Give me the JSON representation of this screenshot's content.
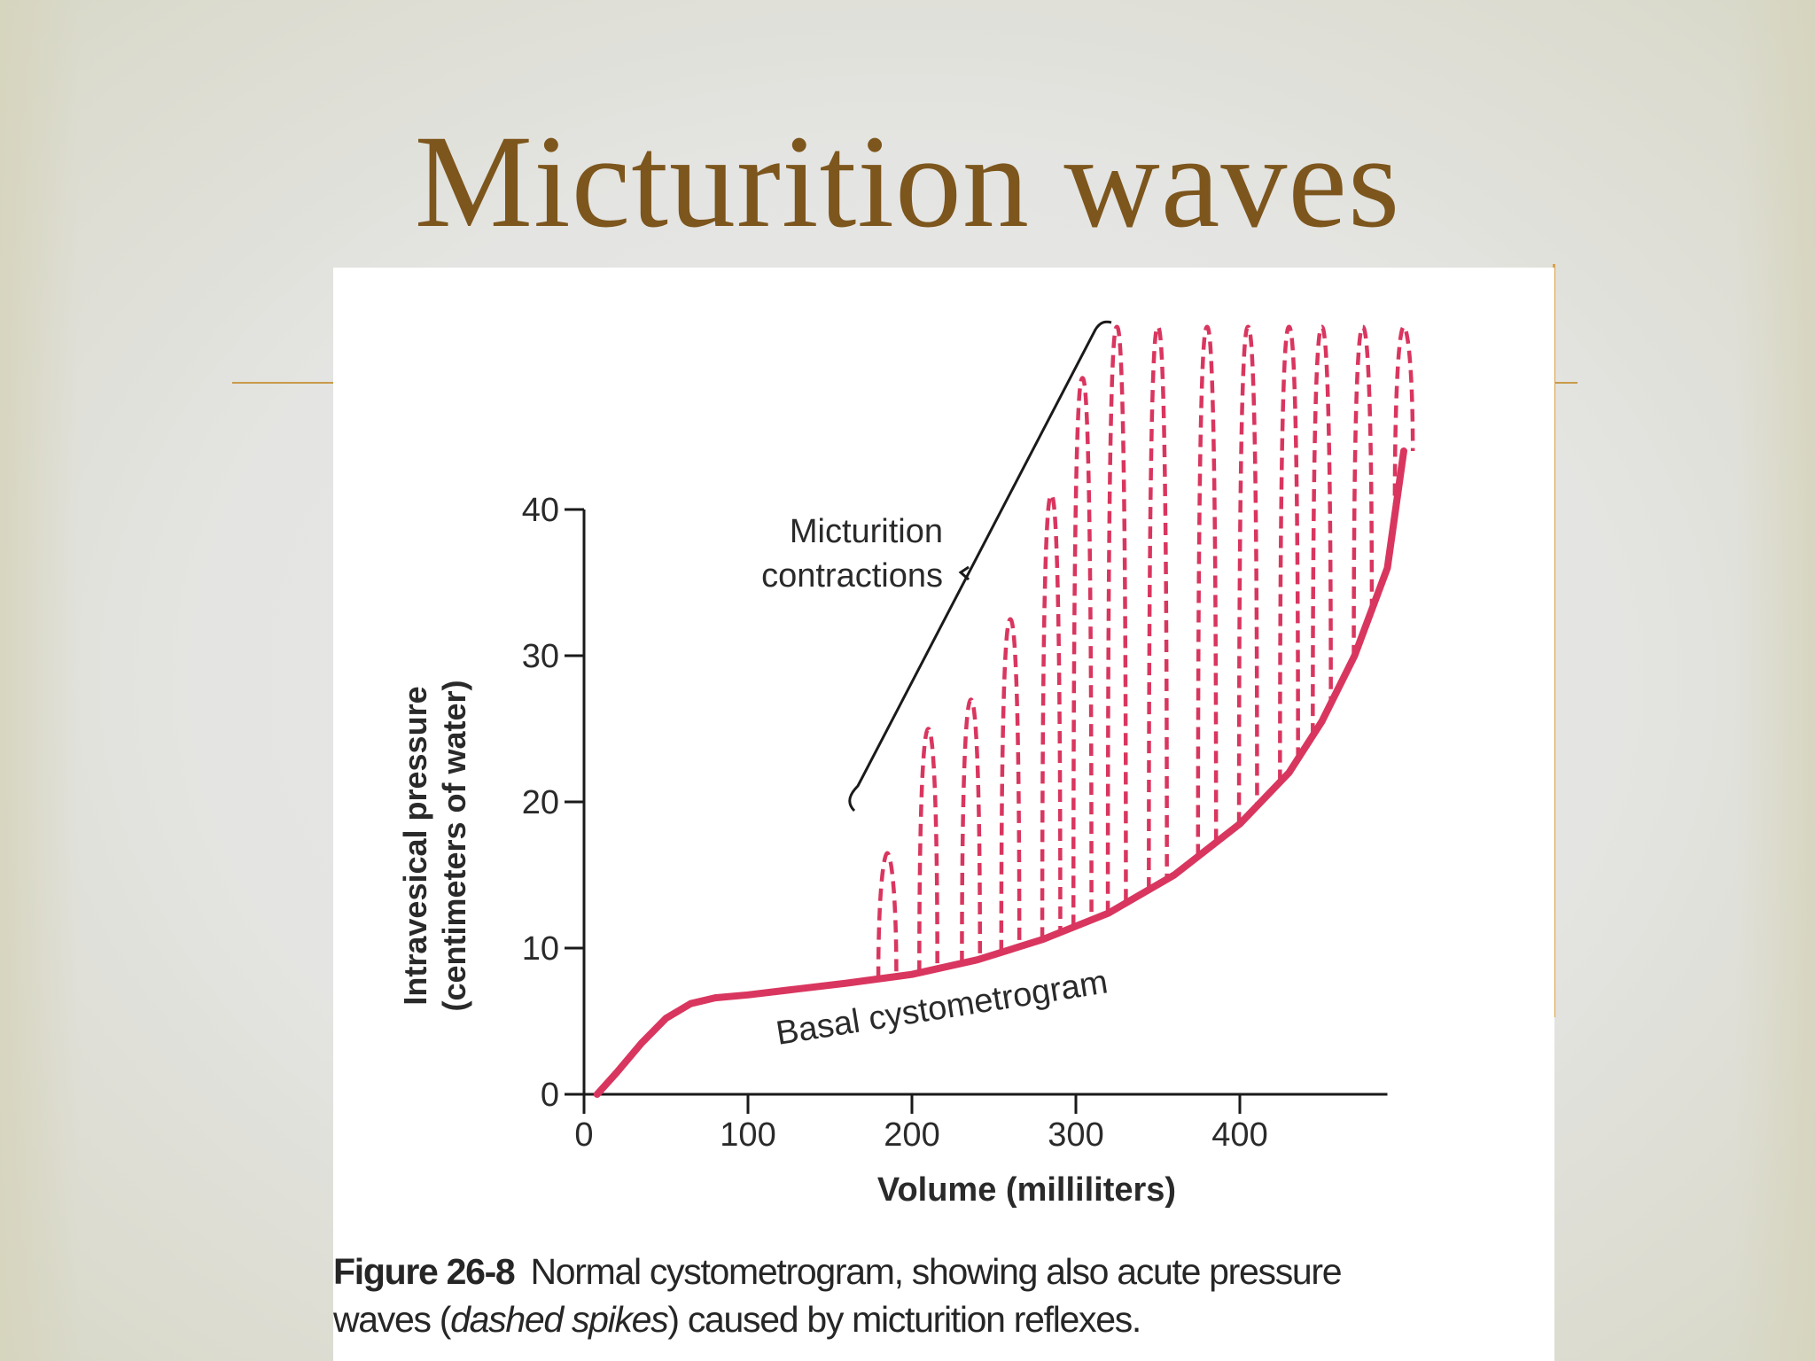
{
  "slide": {
    "title": "Micturition waves"
  },
  "figure": {
    "caption_number": "Figure 26-8",
    "caption_line1": "Normal cystometrogram, showing also acute pressure",
    "caption_line2_pre": "waves (",
    "caption_line2_italic": "dashed spikes",
    "caption_line2_post": ") caused by micturition reflexes."
  },
  "colors": {
    "title": "#7d561d",
    "accent_rule": "#c99a4a",
    "curve": "#d9365f",
    "axis": "#1a1a1a"
  },
  "chart_data": {
    "type": "line",
    "title": "",
    "xlabel": "Volume (milliliters)",
    "ylabel": "Intravesical pressure (centimeters of water)",
    "ylabel_line1": "Intravesical pressure",
    "ylabel_line2": "(centimeters of water)",
    "xlim": [
      0,
      500
    ],
    "ylim": [
      0,
      40
    ],
    "xticks": [
      0,
      100,
      200,
      300,
      400
    ],
    "xtick_labels": [
      "0",
      "100",
      "200",
      "300",
      "400"
    ],
    "yticks": [
      0,
      10,
      20,
      30,
      40
    ],
    "ytick_labels": [
      "0",
      "10",
      "20",
      "30",
      "40"
    ],
    "grid": false,
    "series": [
      {
        "name": "Basal cystometrogram",
        "style": "solid",
        "x": [
          8,
          20,
          35,
          50,
          65,
          80,
          100,
          130,
          160,
          200,
          240,
          280,
          320,
          360,
          400,
          430,
          450,
          470,
          490,
          500
        ],
        "y": [
          0,
          1.5,
          3.5,
          5.2,
          6.2,
          6.6,
          6.8,
          7.2,
          7.6,
          8.2,
          9.2,
          10.6,
          12.4,
          15.0,
          18.5,
          22.0,
          25.5,
          30.0,
          36.0,
          44.0
        ]
      }
    ],
    "micturition_spikes": {
      "name": "Micturition contractions",
      "style": "dashed",
      "x": [
        185,
        210,
        236,
        260,
        285,
        304,
        325,
        350,
        380,
        405,
        430,
        450,
        475,
        500
      ],
      "peak_y": [
        16.5,
        25,
        27,
        32.5,
        41,
        49,
        52.5,
        52.5,
        52.5,
        52.5,
        52.5,
        52.5,
        52.5,
        52.5
      ]
    },
    "annotations": [
      {
        "text_line1": "Micturition",
        "text_line2": "contractions"
      },
      {
        "text": "Basal cystometrogram"
      }
    ]
  }
}
